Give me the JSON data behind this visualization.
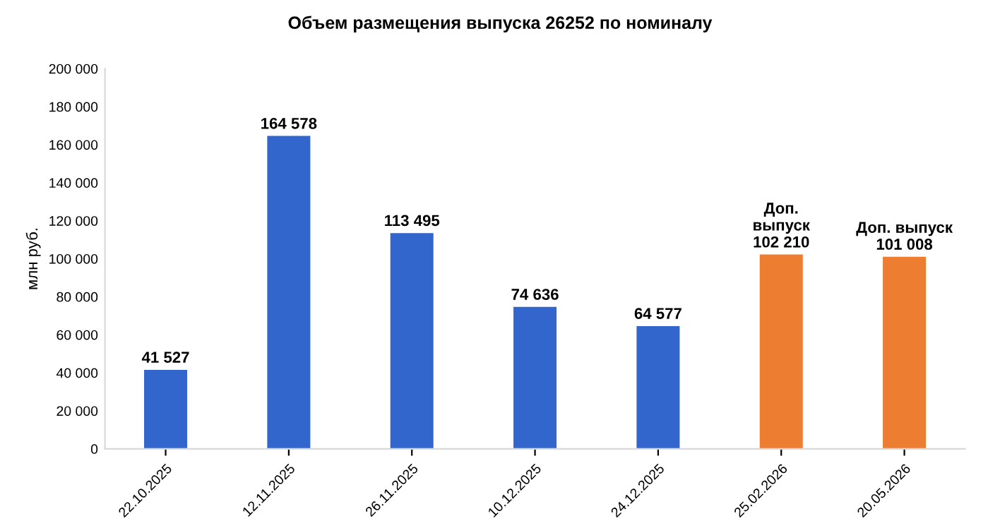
{
  "chart_data": {
    "type": "bar",
    "title": "Объем размещения выпуска 26252 по номиналу",
    "ylabel": "млн руб.",
    "categories": [
      "22.10.2025",
      "12.11.2025",
      "26.11.2025",
      "10.12.2025",
      "24.12.2025",
      "25.02.2026",
      "20.05.2026"
    ],
    "values": [
      41527,
      164578,
      113495,
      74636,
      64577,
      102210,
      101008
    ],
    "colors": [
      "#3366cc",
      "#3366cc",
      "#3366cc",
      "#3366cc",
      "#3366cc",
      "#ed7d31",
      "#ed7d31"
    ],
    "value_labels": [
      "41 527",
      "164 578",
      "113 495",
      "74 636",
      "64 577",
      "Доп.\nвыпуск\n102 210",
      "Доп. выпуск\n101 008"
    ],
    "ylim": [
      0,
      200000
    ],
    "yticks": [
      {
        "value": 0,
        "label": "0"
      },
      {
        "value": 20000,
        "label": "20 000"
      },
      {
        "value": 40000,
        "label": "40 000"
      },
      {
        "value": 60000,
        "label": "60 000"
      },
      {
        "value": 80000,
        "label": "80 000"
      },
      {
        "value": 100000,
        "label": "100 000"
      },
      {
        "value": 120000,
        "label": "120 000"
      },
      {
        "value": 140000,
        "label": "140 000"
      },
      {
        "value": 160000,
        "label": "160 000"
      },
      {
        "value": 180000,
        "label": "180 000"
      },
      {
        "value": 200000,
        "label": "200 000"
      }
    ],
    "grid": false,
    "legend": false
  }
}
